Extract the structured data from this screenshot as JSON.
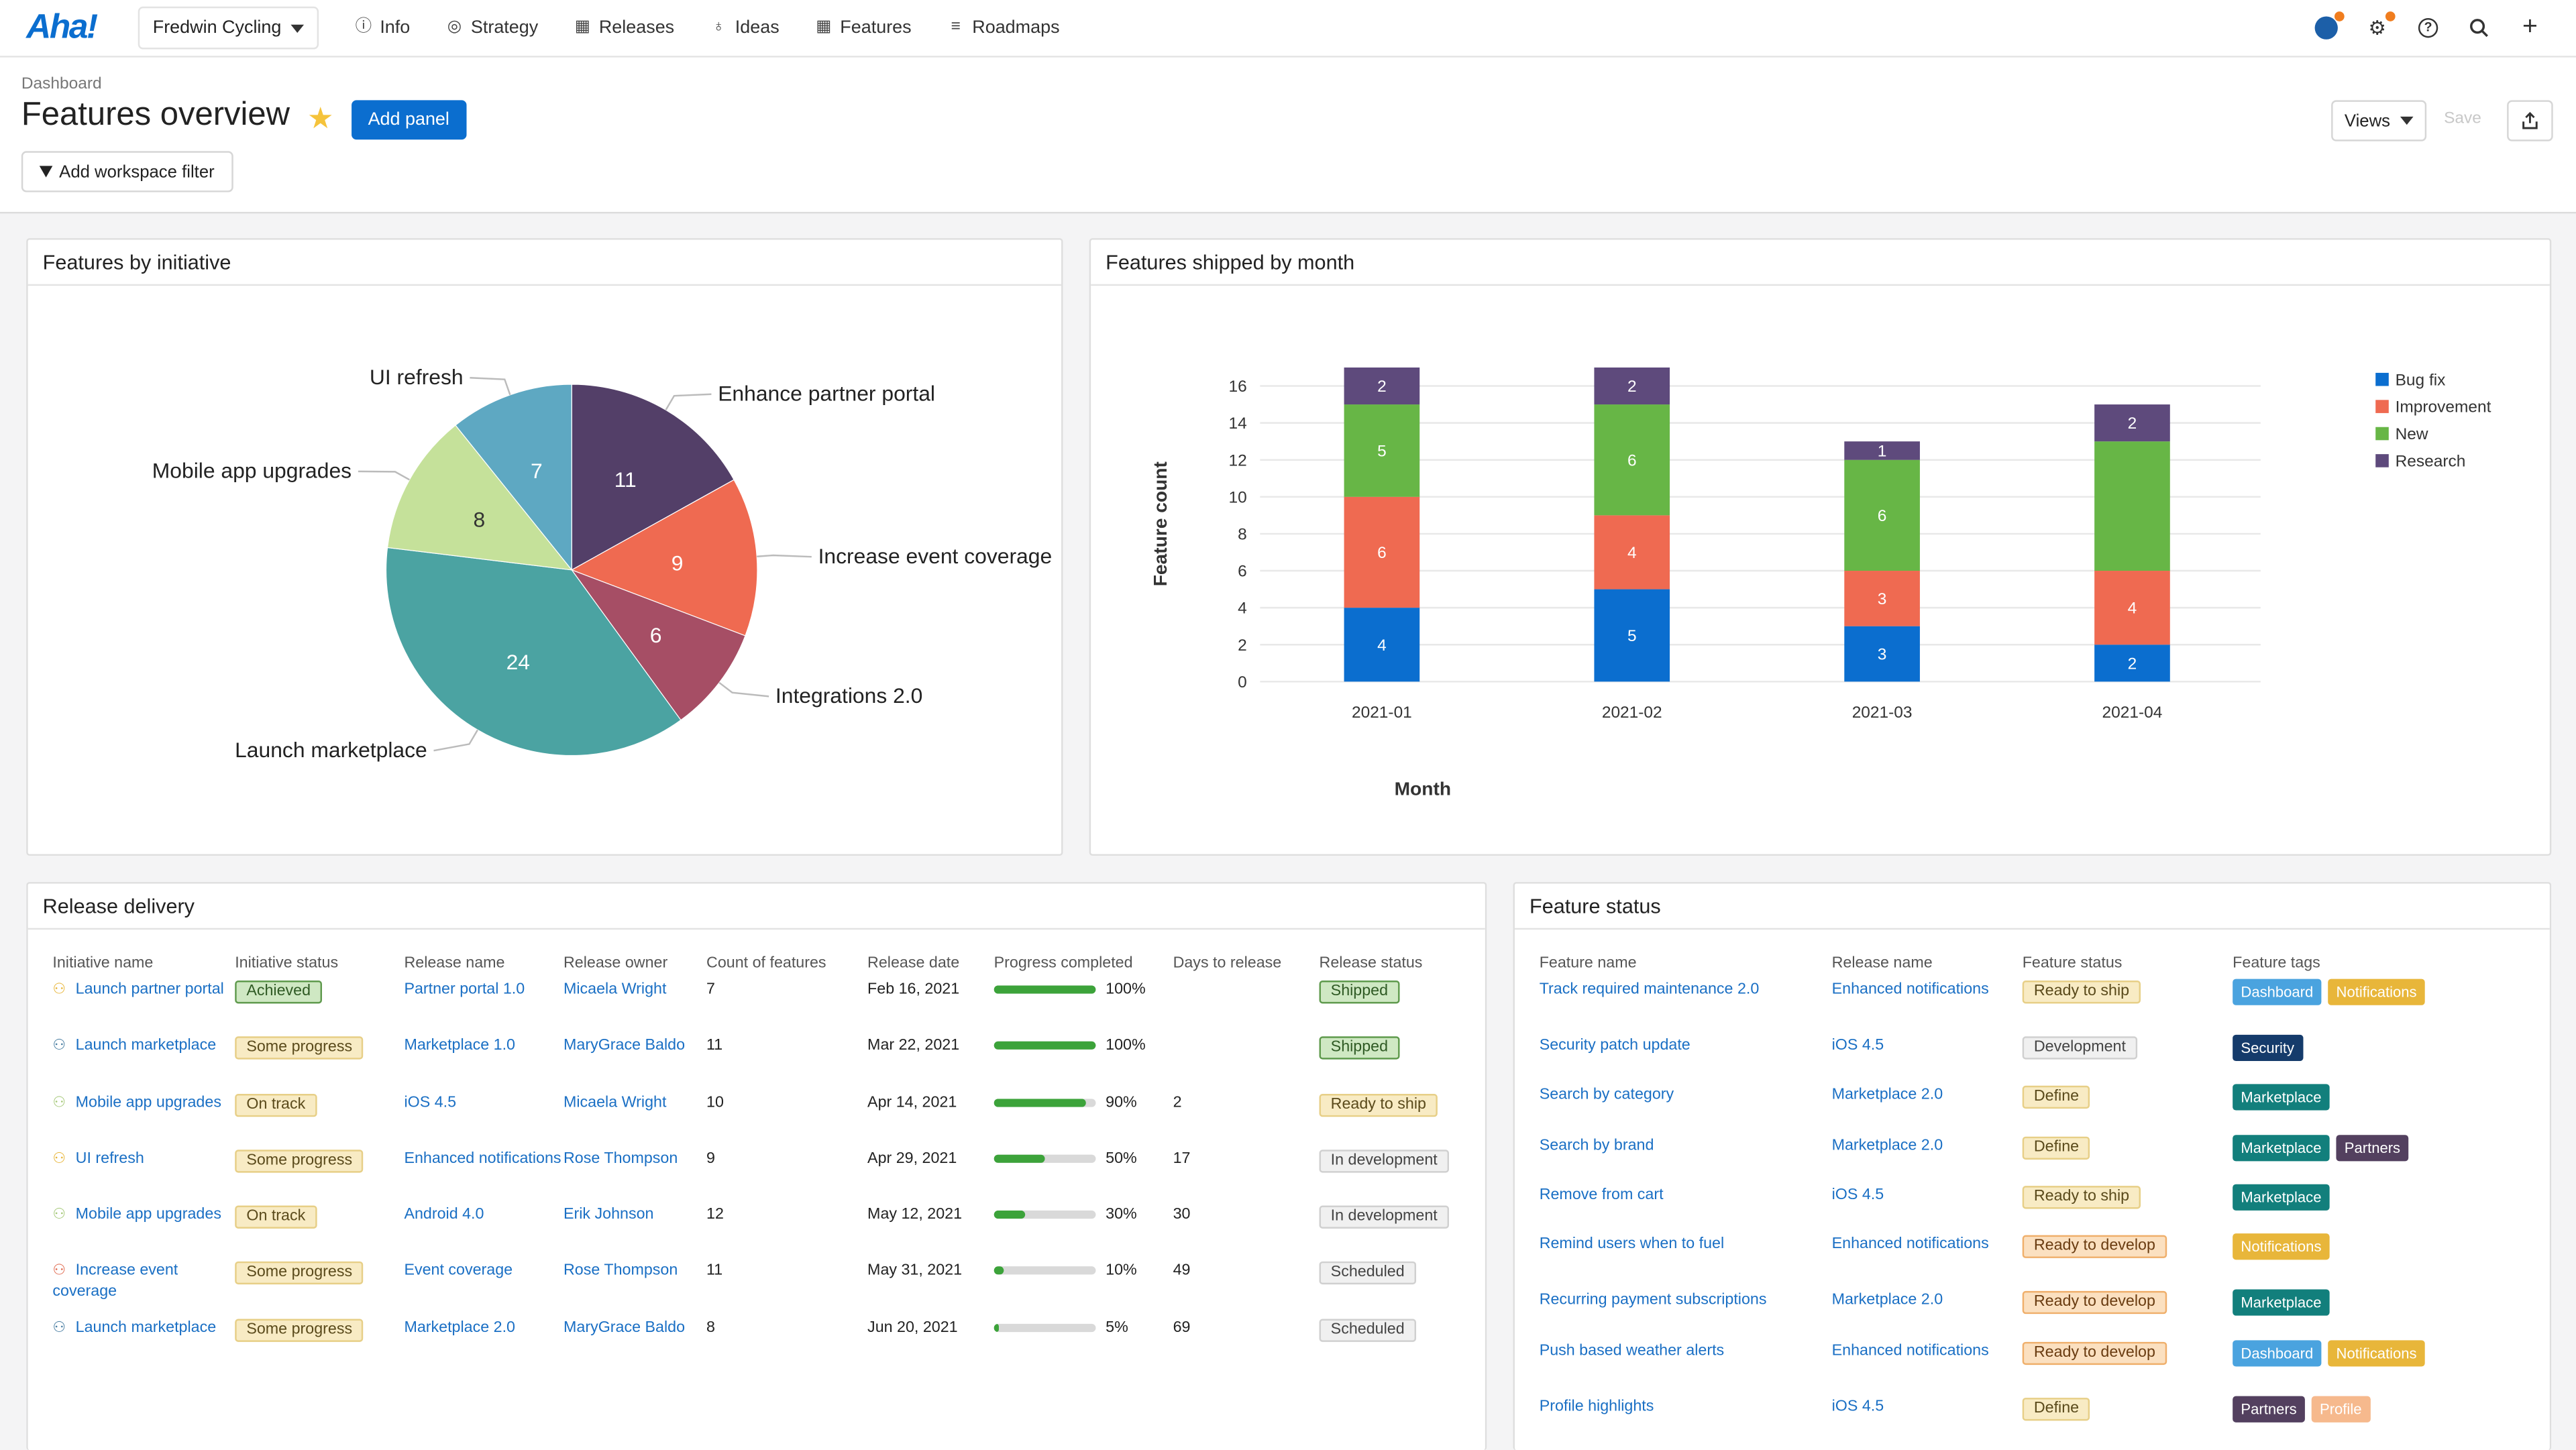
{
  "nav": {
    "logo": "Aha!",
    "workspace": "Fredwin Cycling",
    "items": [
      {
        "label": "Info",
        "icon": "info-icon"
      },
      {
        "label": "Strategy",
        "icon": "target-icon"
      },
      {
        "label": "Releases",
        "icon": "calendar-icon"
      },
      {
        "label": "Ideas",
        "icon": "lightbulb-icon"
      },
      {
        "label": "Features",
        "icon": "grid-icon"
      },
      {
        "label": "Roadmaps",
        "icon": "roadmap-icon"
      }
    ]
  },
  "header": {
    "breadcrumb": "Dashboard",
    "title": "Features overview",
    "add_panel": "Add panel",
    "add_filter": "Add workspace filter",
    "views": "Views",
    "save": "Save"
  },
  "panels": {
    "pie": {
      "title": "Features by initiative",
      "chart_data": {
        "type": "pie",
        "slices": [
          {
            "label": "Enhance partner portal",
            "value": 11,
            "color": "#533f68"
          },
          {
            "label": "Increase event coverage",
            "value": 9,
            "color": "#ef6a51"
          },
          {
            "label": "Integrations 2.0",
            "value": 6,
            "color": "#a64e65"
          },
          {
            "label": "Launch marketplace",
            "value": 24,
            "color": "#4ba3a2"
          },
          {
            "label": "Mobile app upgrades",
            "value": 8,
            "color": "#c5e19a"
          },
          {
            "label": "UI refresh",
            "value": 7,
            "color": "#5ea8c2"
          }
        ]
      }
    },
    "bar": {
      "title": "Features shipped by month",
      "chart_data": {
        "type": "bar",
        "stacked": true,
        "categories": [
          "2021-01",
          "2021-02",
          "2021-03",
          "2021-04"
        ],
        "series": [
          {
            "name": "Bug fix",
            "values": [
              4,
              5,
              3,
              2
            ],
            "color": "#0b6ecf"
          },
          {
            "name": "Improvement",
            "values": [
              6,
              4,
              3,
              4
            ],
            "color": "#ef6a51"
          },
          {
            "name": "New",
            "values": [
              5,
              6,
              6,
              7
            ],
            "color": "#67b646"
          },
          {
            "name": "Research",
            "values": [
              2,
              2,
              1,
              2
            ],
            "color": "#5e4a7c"
          }
        ],
        "segment_labels_hidden": [
          [
            false,
            false,
            false,
            false
          ],
          [
            false,
            false,
            false,
            false
          ],
          [
            false,
            false,
            false,
            true
          ],
          [
            false,
            false,
            false,
            false
          ]
        ],
        "ylim": [
          0,
          16
        ],
        "yticks": [
          0,
          2,
          4,
          6,
          8,
          10,
          12,
          14,
          16
        ],
        "xlabel": "Month",
        "ylabel": "Feature count",
        "legend": "top-right",
        "grid": true
      }
    },
    "release_delivery": {
      "title": "Release delivery",
      "columns": [
        "Initiative name",
        "Initiative status",
        "Release name",
        "Release owner",
        "Count of features",
        "Release date",
        "Progress completed",
        "Days to release",
        "Release status"
      ],
      "rows": [
        {
          "initiative": "Launch partner portal",
          "init_color": "#e8b63a",
          "init_status": "Achieved",
          "status_style": "green",
          "release": "Partner portal 1.0",
          "owner": "Micaela Wright",
          "count": "7",
          "date": "Feb 16, 2021",
          "progress": 100,
          "progress_label": "100%",
          "days": "",
          "release_status": "Shipped",
          "rs_style": "green"
        },
        {
          "initiative": "Launch marketplace",
          "init_color": "#4b7fa3",
          "init_status": "Some progress",
          "status_style": "yellow",
          "release": "Marketplace 1.0",
          "owner": "MaryGrace Baldo",
          "count": "11",
          "date": "Mar 22, 2021",
          "progress": 100,
          "progress_label": "100%",
          "days": "",
          "release_status": "Shipped",
          "rs_style": "green"
        },
        {
          "initiative": "Mobile app upgrades",
          "init_color": "#a6c97a",
          "init_status": "On track",
          "status_style": "yellow",
          "release": "iOS 4.5",
          "owner": "Micaela Wright",
          "count": "10",
          "date": "Apr 14, 2021",
          "progress": 90,
          "progress_label": "90%",
          "days": "2",
          "release_status": "Ready to ship",
          "rs_style": "yellow"
        },
        {
          "initiative": "UI refresh",
          "init_color": "#e8b63a",
          "init_status": "Some progress",
          "status_style": "yellow",
          "release": "Enhanced notifications",
          "owner": "Rose Thompson",
          "count": "9",
          "date": "Apr 29, 2021",
          "progress": 50,
          "progress_label": "50%",
          "days": "17",
          "release_status": "In development",
          "rs_style": "gray"
        },
        {
          "initiative": "Mobile app upgrades",
          "init_color": "#a6c97a",
          "init_status": "On track",
          "status_style": "yellow",
          "release": "Android 4.0",
          "owner": "Erik Johnson",
          "count": "12",
          "date": "May 12, 2021",
          "progress": 30,
          "progress_label": "30%",
          "days": "30",
          "release_status": "In development",
          "rs_style": "gray"
        },
        {
          "initiative": "Increase event coverage",
          "init_color": "#e06a4f",
          "init_status": "Some progress",
          "status_style": "yellow",
          "release": "Event coverage",
          "owner": "Rose Thompson",
          "count": "11",
          "date": "May 31, 2021",
          "progress": 10,
          "progress_label": "10%",
          "days": "49",
          "release_status": "Scheduled",
          "rs_style": "gray"
        },
        {
          "initiative": "Launch marketplace",
          "init_color": "#4b7fa3",
          "init_status": "Some progress",
          "status_style": "yellow",
          "release": "Marketplace 2.0",
          "owner": "MaryGrace Baldo",
          "count": "8",
          "date": "Jun 20, 2021",
          "progress": 5,
          "progress_label": "5%",
          "days": "69",
          "release_status": "Scheduled",
          "rs_style": "gray"
        }
      ]
    },
    "feature_status": {
      "title": "Feature status",
      "columns": [
        "Feature name",
        "Release name",
        "Feature status",
        "Feature tags"
      ],
      "rows": [
        {
          "feature": "Track required maintenance 2.0",
          "release": "Enhanced notifications",
          "status": "Ready to ship",
          "status_style": "yellow",
          "tags": [
            {
              "label": "Dashboard",
              "color": "#4aa3df"
            },
            {
              "label": "Notifications",
              "color": "#e8b63a"
            }
          ]
        },
        {
          "feature": "Security patch update",
          "release": "iOS 4.5",
          "status": "Development",
          "status_style": "gray",
          "tags": [
            {
              "label": "Security",
              "color": "#153b6b"
            }
          ]
        },
        {
          "feature": "Search by category",
          "release": "Marketplace 2.0",
          "status": "Define",
          "status_style": "yellow",
          "tags": [
            {
              "label": "Marketplace",
              "color": "#127f7c"
            }
          ]
        },
        {
          "feature": "Search by brand",
          "release": "Marketplace 2.0",
          "status": "Define",
          "status_style": "yellow",
          "tags": [
            {
              "label": "Marketplace",
              "color": "#127f7c"
            },
            {
              "label": "Partners",
              "color": "#53405f"
            }
          ]
        },
        {
          "feature": "Remove from cart",
          "release": "iOS 4.5",
          "status": "Ready to ship",
          "status_style": "yellow",
          "tags": [
            {
              "label": "Marketplace",
              "color": "#127f7c"
            }
          ]
        },
        {
          "feature": "Remind users when to fuel",
          "release": "Enhanced notifications",
          "status": "Ready to develop",
          "status_style": "orange",
          "tags": [
            {
              "label": "Notifications",
              "color": "#e8b63a"
            }
          ]
        },
        {
          "feature": "Recurring payment subscriptions",
          "release": "Marketplace 2.0",
          "status": "Ready to develop",
          "status_style": "orange",
          "tags": [
            {
              "label": "Marketplace",
              "color": "#127f7c"
            }
          ]
        },
        {
          "feature": "Push based weather alerts",
          "release": "Enhanced notifications",
          "status": "Ready to develop",
          "status_style": "orange",
          "tags": [
            {
              "label": "Dashboard",
              "color": "#4aa3df"
            },
            {
              "label": "Notifications",
              "color": "#e8b63a"
            }
          ]
        },
        {
          "feature": "Profile highlights",
          "release": "iOS 4.5",
          "status": "Define",
          "status_style": "yellow",
          "tags": [
            {
              "label": "Partners",
              "color": "#53405f"
            },
            {
              "label": "Profile",
              "color": "#f6b98d"
            }
          ]
        }
      ]
    }
  }
}
